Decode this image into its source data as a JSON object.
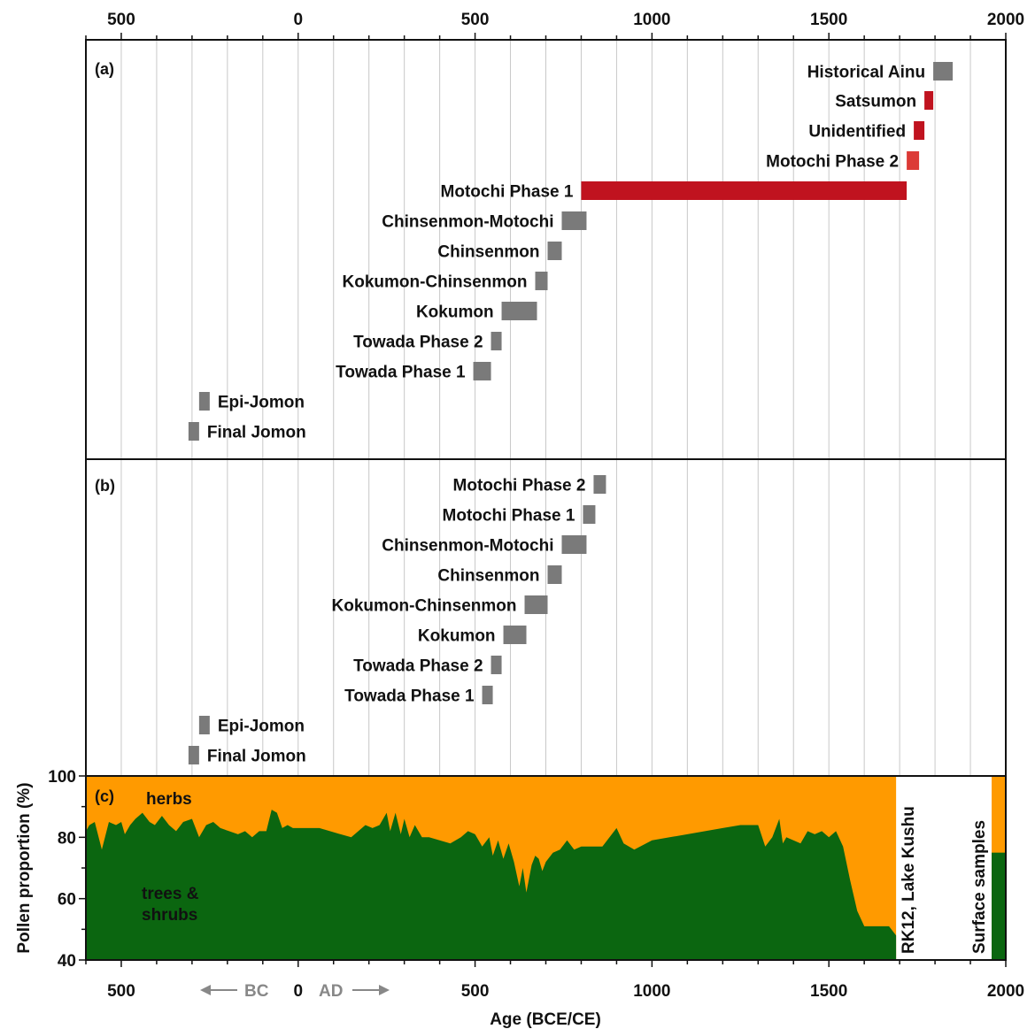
{
  "chart_data": [
    {
      "panel": "a",
      "type": "bar",
      "panel_label": "(a)",
      "xlim": [
        -600,
        2000
      ],
      "x_tick_labels": [
        {
          "value": -500,
          "label": "500"
        },
        {
          "value": 0,
          "label": "0"
        },
        {
          "value": 500,
          "label": "500"
        },
        {
          "value": 1000,
          "label": "1000"
        },
        {
          "value": 1500,
          "label": "1500"
        },
        {
          "value": 2000,
          "label": "2000"
        }
      ],
      "grid": "vertical every 100 years",
      "bars": [
        {
          "name": "Historical Ainu",
          "start": 1795,
          "end": 1850,
          "color": "#7a7a7a"
        },
        {
          "name": "Satsumon",
          "start": 1770,
          "end": 1795,
          "color": "#c0131f"
        },
        {
          "name": "Unidentified",
          "start": 1740,
          "end": 1770,
          "color": "#c0131f"
        },
        {
          "name": "Motochi Phase 2",
          "start": 1720,
          "end": 1755,
          "color": "#dc3a36"
        },
        {
          "name": "Motochi Phase 1",
          "start": 800,
          "end": 1720,
          "color": "#c0131f"
        },
        {
          "name": "Chinsenmon-Motochi",
          "start": 745,
          "end": 815,
          "color": "#7a7a7a"
        },
        {
          "name": "Chinsenmon",
          "start": 705,
          "end": 745,
          "color": "#7a7a7a"
        },
        {
          "name": "Kokumon-Chinsenmon",
          "start": 670,
          "end": 705,
          "color": "#7a7a7a"
        },
        {
          "name": "Kokumon",
          "start": 575,
          "end": 675,
          "color": "#7a7a7a"
        },
        {
          "name": "Towada Phase 2",
          "start": 545,
          "end": 575,
          "color": "#7a7a7a"
        },
        {
          "name": "Towada Phase 1",
          "start": 495,
          "end": 545,
          "color": "#7a7a7a"
        },
        {
          "name": "Epi-Jomon",
          "start": -280,
          "end": -250,
          "color": "#7a7a7a"
        },
        {
          "name": "Final Jomon",
          "start": -310,
          "end": -280,
          "color": "#7a7a7a"
        }
      ]
    },
    {
      "panel": "b",
      "type": "bar",
      "panel_label": "(b)",
      "xlim": [
        -600,
        2000
      ],
      "grid": "vertical every 100 years",
      "bars": [
        {
          "name": "Motochi Phase 2",
          "start": 835,
          "end": 870,
          "color": "#7a7a7a"
        },
        {
          "name": "Motochi Phase 1",
          "start": 805,
          "end": 840,
          "color": "#7a7a7a"
        },
        {
          "name": "Chinsenmon-Motochi",
          "start": 745,
          "end": 815,
          "color": "#7a7a7a"
        },
        {
          "name": "Chinsenmon",
          "start": 705,
          "end": 745,
          "color": "#7a7a7a"
        },
        {
          "name": "Kokumon-Chinsenmon",
          "start": 640,
          "end": 705,
          "color": "#7a7a7a"
        },
        {
          "name": "Kokumon",
          "start": 580,
          "end": 645,
          "color": "#7a7a7a"
        },
        {
          "name": "Towada Phase 2",
          "start": 545,
          "end": 575,
          "color": "#7a7a7a"
        },
        {
          "name": "Towada Phase 1",
          "start": 520,
          "end": 550,
          "color": "#7a7a7a"
        },
        {
          "name": "Epi-Jomon",
          "start": -280,
          "end": -250,
          "color": "#7a7a7a"
        },
        {
          "name": "Final Jomon",
          "start": -310,
          "end": -280,
          "color": "#7a7a7a"
        }
      ]
    },
    {
      "panel": "c",
      "type": "area",
      "panel_label": "(c)",
      "xlim": [
        -600,
        2000
      ],
      "ylim": [
        40,
        100
      ],
      "ylabel": "Pollen proportion (%)",
      "xlabel": "Age (BCE/CE)",
      "y_tick_labels": [
        "40",
        "60",
        "80",
        "100"
      ],
      "y_ticks": [
        40,
        60,
        80,
        100
      ],
      "x_tick_labels": [
        {
          "value": -500,
          "label": "500"
        },
        {
          "value": 0,
          "label": "0"
        },
        {
          "value": 500,
          "label": "500"
        },
        {
          "value": 1000,
          "label": "1000"
        },
        {
          "value": 1500,
          "label": "1500"
        },
        {
          "value": 2000,
          "label": "2000"
        }
      ],
      "era_labels": {
        "bc": "BC",
        "ad": "AD"
      },
      "series_labels": {
        "herbs": "herbs",
        "trees": "trees &\nshrubs"
      },
      "colors": {
        "herbs": "#ff9a00",
        "trees": "#0b6610"
      },
      "series": [
        {
          "name": "trees & shrubs",
          "x": [
            -600,
            -590,
            -575,
            -555,
            -535,
            -515,
            -500,
            -490,
            -475,
            -460,
            -440,
            -420,
            -405,
            -385,
            -365,
            -345,
            -325,
            -300,
            -280,
            -260,
            -240,
            -220,
            -195,
            -170,
            -150,
            -130,
            -110,
            -90,
            -75,
            -60,
            -45,
            -30,
            -15,
            0,
            30,
            60,
            90,
            120,
            150,
            170,
            190,
            210,
            230,
            250,
            260,
            275,
            290,
            300,
            315,
            330,
            350,
            370,
            400,
            430,
            460,
            480,
            500,
            520,
            540,
            550,
            565,
            580,
            595,
            610,
            625,
            635,
            645,
            660,
            670,
            680,
            690,
            700,
            720,
            740,
            760,
            780,
            800,
            830,
            860,
            900,
            920,
            950,
            1000,
            1050,
            1100,
            1150,
            1200,
            1250,
            1300,
            1320,
            1340,
            1360,
            1370,
            1380,
            1400,
            1420,
            1440,
            1460,
            1480,
            1500,
            1520,
            1540,
            1560,
            1580,
            1600,
            1640,
            1670,
            1690
          ],
          "y": [
            82,
            84,
            85,
            76,
            85,
            84,
            85,
            81,
            84,
            86,
            88,
            85,
            84,
            87,
            84,
            82,
            85,
            86,
            80,
            84,
            85,
            83,
            82,
            81,
            82,
            80,
            82,
            82,
            89,
            88,
            83,
            84,
            83,
            83,
            83,
            83,
            82,
            81,
            80,
            82,
            84,
            83,
            84,
            88,
            82,
            88,
            81,
            86,
            80,
            84,
            80,
            80,
            79,
            78,
            80,
            82,
            81,
            77,
            80,
            74,
            79,
            73,
            78,
            72,
            64,
            70,
            62,
            71,
            74,
            73,
            69,
            72,
            75,
            76,
            79,
            76,
            77,
            77,
            77,
            83,
            78,
            76,
            79,
            80,
            81,
            82,
            83,
            84,
            84,
            77,
            80,
            86,
            78,
            80,
            79,
            78,
            82,
            81,
            82,
            80,
            82,
            77,
            66,
            56,
            51,
            51,
            51,
            48
          ]
        },
        {
          "name": "surface samples",
          "x": [
            1960,
            2000
          ],
          "y": [
            75,
            75
          ]
        }
      ],
      "annotations": [
        "RK12, Lake Kushu",
        "Surface samples"
      ]
    }
  ]
}
